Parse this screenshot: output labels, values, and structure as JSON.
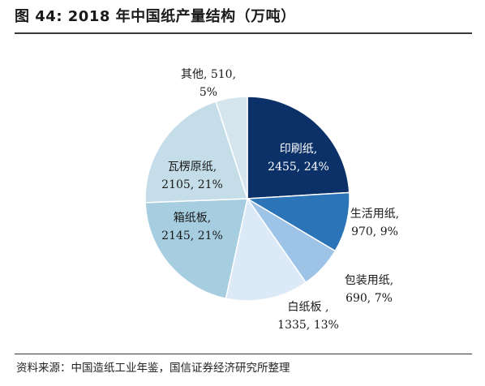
{
  "header": {
    "title": "图 44:  2018 年中国纸产量结构（万吨）"
  },
  "footer": {
    "source": "资料来源：中国造纸工业年鉴，国信证券经济研究所整理"
  },
  "chart_data": {
    "type": "pie",
    "title": "图 44:  2018 年中国纸产量结构（万吨）",
    "slices": [
      {
        "name": "印刷纸",
        "value": 2455,
        "percent": "24%",
        "label_line1": "印刷纸,",
        "label_line2": "2455, 24%",
        "color": "#0b3168",
        "text_color": "#ffffff"
      },
      {
        "name": "生活用纸",
        "value": 970,
        "percent": "9%",
        "label_line1": "生活用纸,",
        "label_line2": "970, 9%",
        "color": "#2b74b8",
        "text_color": "#1a1a1a"
      },
      {
        "name": "包装用纸",
        "value": 690,
        "percent": "7%",
        "label_line1": "包装用纸,",
        "label_line2": "690, 7%",
        "color": "#9dc3e6",
        "text_color": "#1a1a1a"
      },
      {
        "name": "白纸板",
        "value": 1335,
        "percent": "13%",
        "label_line1": "白纸板 ,",
        "label_line2": "1335, 13%",
        "color": "#dce9f6",
        "text_color": "#1a1a1a"
      },
      {
        "name": "箱纸板",
        "value": 2145,
        "percent": "21%",
        "label_line1": "箱纸板,",
        "label_line2": "2145, 21%",
        "color": "#a6cde0",
        "text_color": "#1a1a1a"
      },
      {
        "name": "瓦楞原纸",
        "value": 2105,
        "percent": "21%",
        "label_line1": "瓦楞原纸,",
        "label_line2": "2105, 21%",
        "color": "#c4dde8",
        "text_color": "#1a1a1a"
      },
      {
        "name": "其他",
        "value": 510,
        "percent": "5%",
        "label_line1": "其他, 510,",
        "label_line2": "5%",
        "color": "#d5e5ee",
        "text_color": "#1a1a1a"
      }
    ]
  }
}
